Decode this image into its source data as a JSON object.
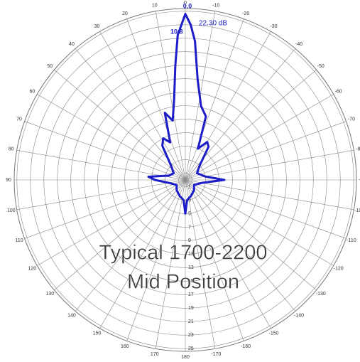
{
  "chart_data": {
    "type": "polar",
    "annotations": [
      "0.0",
      "22.30 dB",
      "10.8"
    ],
    "title_lines": [
      "Typical 1700-2200",
      "Mid Position"
    ],
    "color": "#1c1cc8",
    "rlim": [
      0,
      25.4
    ],
    "rticks": [
      1,
      3,
      5,
      7,
      9,
      11,
      13,
      15,
      17,
      19,
      21,
      23,
      25
    ],
    "thetaticks": [
      0,
      10,
      20,
      30,
      40,
      50,
      60,
      70,
      80,
      90,
      100,
      110,
      120,
      130,
      140,
      150,
      160,
      170,
      180,
      -170,
      -160,
      -150,
      -140,
      -130,
      -120,
      -110,
      -100,
      -90,
      -80,
      -70,
      -60,
      -50,
      -40,
      -30,
      -20,
      -10
    ],
    "theta": [
      0,
      3,
      5,
      8,
      12,
      17,
      22,
      28,
      34,
      45,
      60,
      75,
      85,
      90,
      100,
      120,
      140,
      160,
      175,
      180,
      -175,
      -160,
      -140,
      -120,
      -100,
      -90,
      -80,
      -60,
      -45,
      -35,
      -30,
      -22,
      -18,
      -12,
      -7,
      -4,
      -2
    ],
    "r": [
      24.6,
      21.5,
      17,
      12,
      9,
      10.4,
      6,
      7,
      6.1,
      3,
      2,
      2.5,
      5.5,
      4.5,
      2.5,
      1.5,
      2,
      2.5,
      3,
      5,
      3,
      2.5,
      2,
      1.5,
      2.5,
      5.8,
      3,
      2,
      3,
      6,
      6.5,
      5,
      9.9,
      11.2,
      15,
      20.6,
      23
    ]
  }
}
